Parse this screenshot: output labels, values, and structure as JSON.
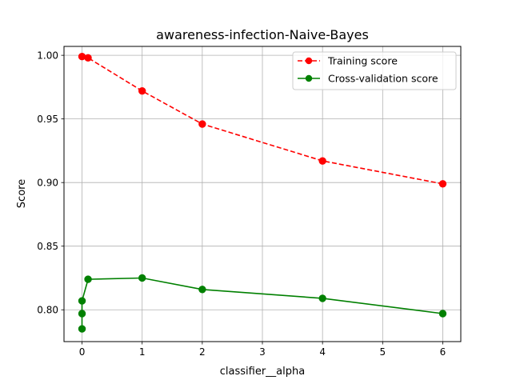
{
  "chart_data": {
    "type": "line",
    "title": "awareness-infection-Naive-Bayes",
    "xlabel": "classifier__alpha",
    "ylabel": "Score",
    "xlim": [
      -0.3,
      6.3
    ],
    "ylim": [
      0.775,
      1.007
    ],
    "xticks": [
      0,
      1,
      2,
      3,
      4,
      5,
      6
    ],
    "xtick_labels": [
      "0",
      "1",
      "2",
      "3",
      "4",
      "5",
      "6"
    ],
    "yticks": [
      0.8,
      0.85,
      0.9,
      0.95,
      1.0
    ],
    "ytick_labels": [
      "0.80",
      "0.85",
      "0.90",
      "0.95",
      "1.00"
    ],
    "grid": true,
    "legend_position": "top-right",
    "series": [
      {
        "name": "Training score",
        "color": "#ff0000",
        "line_style": "dashed",
        "marker": "circle",
        "x": [
          0.0,
          0.1,
          1,
          2,
          4,
          6
        ],
        "y": [
          0.999,
          0.998,
          0.972,
          0.946,
          0.917,
          0.899
        ]
      },
      {
        "name": "Cross-validation score",
        "color": "#008000",
        "line_style": "solid",
        "marker": "circle",
        "x": [
          0.0,
          0.0,
          0.0,
          0.1,
          1,
          2,
          4,
          6
        ],
        "y": [
          0.785,
          0.797,
          0.807,
          0.824,
          0.825,
          0.816,
          0.809,
          0.797
        ]
      }
    ]
  }
}
